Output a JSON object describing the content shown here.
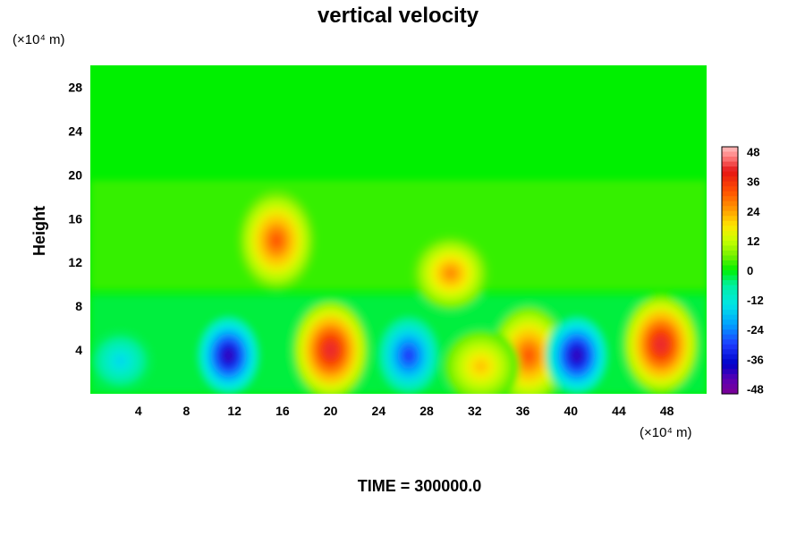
{
  "chart_data": {
    "type": "heatmap",
    "title": "vertical velocity",
    "ylabel": "Height",
    "x_unit_label": "(×10⁴ m)",
    "y_unit_label": "(×10⁴ m)",
    "footer": "TIME = 300000.0",
    "xlim": [
      0,
      51.3
    ],
    "ylim": [
      0,
      30
    ],
    "x_ticks": [
      "4",
      "8",
      "12",
      "16",
      "20",
      "24",
      "28",
      "32",
      "36",
      "40",
      "44",
      "48"
    ],
    "y_ticks": [
      "4",
      "8",
      "12",
      "16",
      "20",
      "24",
      "28"
    ],
    "colorbar": {
      "min": -50,
      "max": 50,
      "ticks": [
        "48",
        "36",
        "24",
        "12",
        "0",
        "-12",
        "-24",
        "-36",
        "-48"
      ]
    },
    "field_features": [
      {
        "kind": "updraft",
        "x": 20,
        "y": 4,
        "peak": 48
      },
      {
        "kind": "updraft",
        "x": 47.5,
        "y": 4.5,
        "peak": 48
      },
      {
        "kind": "updraft",
        "x": 36.5,
        "y": 3.5,
        "peak": 36
      },
      {
        "kind": "updraft",
        "x": 15.5,
        "y": 14,
        "peak": 36
      },
      {
        "kind": "updraft",
        "x": 30,
        "y": 11,
        "peak": 30
      },
      {
        "kind": "updraft",
        "x": 32.5,
        "y": 2.5,
        "peak": 24
      },
      {
        "kind": "downdraft",
        "x": 11.5,
        "y": 3.5,
        "peak": -48
      },
      {
        "kind": "downdraft",
        "x": 40.5,
        "y": 3.5,
        "peak": -48
      },
      {
        "kind": "downdraft",
        "x": 26.5,
        "y": 3.5,
        "peak": -36
      },
      {
        "kind": "downdraft",
        "x": 2.5,
        "y": 3,
        "peak": -18
      }
    ]
  }
}
